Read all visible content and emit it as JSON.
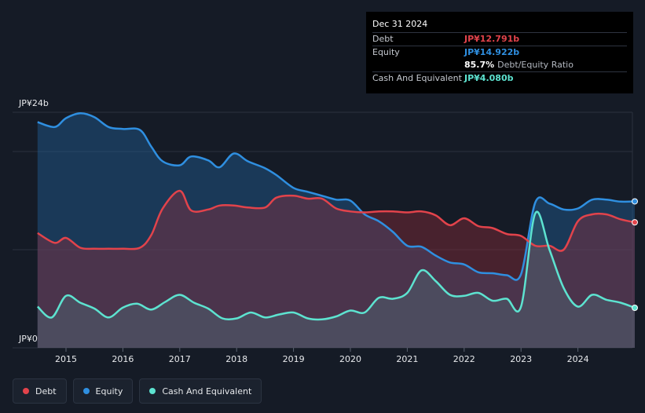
{
  "chart_data": {
    "type": "area",
    "title": "",
    "ylim": [
      0,
      24
    ],
    "y_unit": "JP¥b",
    "y_tick_labels": [
      "JP¥24b",
      "JP¥0"
    ],
    "x_tick_labels": [
      "2015",
      "2016",
      "2017",
      "2018",
      "2019",
      "2020",
      "2021",
      "2022",
      "2023",
      "2024"
    ],
    "x_range": [
      2014.5,
      2025.0
    ],
    "series": [
      {
        "name": "Equity",
        "color": "#2f8fe0",
        "x": [
          2014.5,
          2014.8,
          2015.0,
          2015.25,
          2015.5,
          2015.75,
          2016.0,
          2016.3,
          2016.5,
          2016.7,
          2017.0,
          2017.2,
          2017.5,
          2017.7,
          2017.95,
          2018.2,
          2018.5,
          2018.7,
          2019.0,
          2019.25,
          2019.5,
          2019.75,
          2020.0,
          2020.25,
          2020.5,
          2020.75,
          2021.0,
          2021.25,
          2021.5,
          2021.75,
          2022.0,
          2022.25,
          2022.5,
          2022.75,
          2023.0,
          2023.25,
          2023.5,
          2023.75,
          2024.0,
          2024.25,
          2024.5,
          2024.75,
          2025.0
        ],
        "values": [
          23.0,
          22.5,
          23.4,
          23.9,
          23.5,
          22.5,
          22.3,
          22.2,
          20.5,
          19.0,
          18.6,
          19.5,
          19.1,
          18.4,
          19.8,
          19.0,
          18.3,
          17.6,
          16.3,
          15.9,
          15.5,
          15.1,
          15.0,
          13.6,
          12.9,
          11.8,
          10.4,
          10.3,
          9.4,
          8.7,
          8.5,
          7.7,
          7.6,
          7.4,
          7.5,
          14.8,
          14.7,
          14.1,
          14.2,
          15.1,
          15.1,
          14.9,
          14.922
        ]
      },
      {
        "name": "Debt",
        "color": "#e2434b",
        "x": [
          2014.5,
          2014.8,
          2015.0,
          2015.25,
          2015.5,
          2015.75,
          2016.0,
          2016.3,
          2016.5,
          2016.7,
          2017.0,
          2017.2,
          2017.5,
          2017.7,
          2017.95,
          2018.2,
          2018.5,
          2018.7,
          2019.0,
          2019.25,
          2019.5,
          2019.75,
          2020.0,
          2020.25,
          2020.5,
          2020.75,
          2021.0,
          2021.25,
          2021.5,
          2021.75,
          2022.0,
          2022.25,
          2022.5,
          2022.75,
          2023.0,
          2023.25,
          2023.5,
          2023.75,
          2024.0,
          2024.25,
          2024.5,
          2024.75,
          2025.0
        ],
        "values": [
          11.7,
          10.7,
          11.2,
          10.2,
          10.1,
          10.1,
          10.1,
          10.2,
          11.5,
          14.2,
          16.0,
          14.0,
          14.1,
          14.5,
          14.5,
          14.3,
          14.3,
          15.3,
          15.5,
          15.2,
          15.2,
          14.2,
          13.9,
          13.8,
          13.9,
          13.9,
          13.8,
          13.9,
          13.5,
          12.5,
          13.2,
          12.4,
          12.2,
          11.6,
          11.4,
          10.4,
          10.4,
          10.0,
          12.9,
          13.6,
          13.6,
          13.1,
          12.791
        ]
      },
      {
        "name": "Cash And Equivalent",
        "color": "#5de3d0",
        "x": [
          2014.5,
          2014.75,
          2015.0,
          2015.25,
          2015.5,
          2015.75,
          2016.0,
          2016.25,
          2016.5,
          2016.75,
          2017.0,
          2017.25,
          2017.5,
          2017.75,
          2018.0,
          2018.25,
          2018.5,
          2018.75,
          2019.0,
          2019.25,
          2019.5,
          2019.75,
          2020.0,
          2020.25,
          2020.5,
          2020.75,
          2021.0,
          2021.25,
          2021.5,
          2021.75,
          2022.0,
          2022.25,
          2022.5,
          2022.75,
          2023.0,
          2023.25,
          2023.5,
          2023.75,
          2024.0,
          2024.25,
          2024.5,
          2024.75,
          2025.0
        ],
        "values": [
          4.2,
          3.1,
          5.3,
          4.6,
          4.0,
          3.1,
          4.1,
          4.5,
          3.9,
          4.7,
          5.4,
          4.6,
          4.0,
          3.0,
          3.0,
          3.6,
          3.1,
          3.4,
          3.6,
          3.0,
          2.9,
          3.2,
          3.8,
          3.6,
          5.1,
          5.0,
          5.6,
          7.9,
          6.8,
          5.4,
          5.3,
          5.6,
          4.8,
          5.0,
          4.2,
          13.7,
          10.0,
          6.1,
          4.2,
          5.4,
          4.9,
          4.6,
          4.08
        ]
      }
    ],
    "tooltip": {
      "date": "Dec 31 2024",
      "rows": [
        {
          "label": "Debt",
          "value": "JP¥12.791b",
          "color": "#e2434b"
        },
        {
          "label": "Equity",
          "value": "JP¥14.922b",
          "color": "#2f8fe0"
        },
        {
          "label": "",
          "value": "85.7%",
          "suffix": "Debt/Equity Ratio",
          "color": "#ffffff"
        },
        {
          "label": "Cash And Equivalent",
          "value": "JP¥4.080b",
          "color": "#5de3d0"
        }
      ]
    },
    "legend": [
      {
        "label": "Debt",
        "color": "#e2434b"
      },
      {
        "label": "Equity",
        "color": "#2f8fe0"
      },
      {
        "label": "Cash And Equivalent",
        "color": "#5de3d0"
      }
    ]
  }
}
